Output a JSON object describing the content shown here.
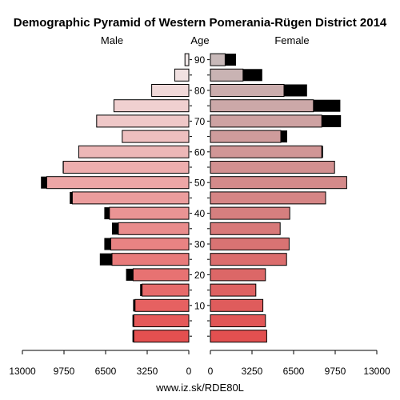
{
  "chart_data": {
    "type": "bar",
    "orientation": "horizontal-pyramid",
    "title": "Demographic Pyramid of Western Pomerania-Rügen District 2014",
    "left_header": "Male",
    "center_header": "Age",
    "right_header": "Female",
    "footer": "www.iz.sk/RDE80L",
    "age_ticks": [
      "90",
      "80",
      "70",
      "60",
      "50",
      "40",
      "30",
      "20",
      "10"
    ],
    "x_ticks_male": [
      "13000",
      "9750",
      "6500",
      "3250",
      "0"
    ],
    "x_ticks_female": [
      "0",
      "3250",
      "6500",
      "9750",
      "13000"
    ],
    "xlim": [
      0,
      13000
    ],
    "age_groups": [
      "0-4",
      "5-9",
      "10-14",
      "15-19",
      "20-24",
      "25-29",
      "30-34",
      "35-39",
      "40-44",
      "45-49",
      "50-54",
      "55-59",
      "60-64",
      "65-69",
      "70-74",
      "75-79",
      "80-84",
      "85-89",
      "90+"
    ],
    "series": [
      {
        "name": "Male",
        "values": [
          4300,
          4300,
          4200,
          3650,
          4350,
          6000,
          6100,
          5500,
          6200,
          9100,
          11100,
          9800,
          8600,
          5200,
          7200,
          5850,
          2900,
          1100,
          300
        ],
        "excess": [
          100,
          100,
          150,
          150,
          550,
          950,
          500,
          500,
          400,
          200,
          450,
          50,
          0,
          0,
          0,
          0,
          0,
          0,
          0
        ]
      },
      {
        "name": "Female",
        "values": [
          4400,
          4300,
          4100,
          3550,
          4300,
          5950,
          6150,
          5450,
          6200,
          9000,
          10650,
          9700,
          8700,
          5500,
          8700,
          8050,
          5750,
          2550,
          1150
        ],
        "excess": [
          0,
          0,
          0,
          0,
          0,
          0,
          0,
          0,
          0,
          0,
          0,
          0,
          100,
          500,
          1500,
          2100,
          1800,
          1500,
          850
        ]
      }
    ],
    "colors": {
      "excess": "#000000",
      "bar_stroke": "#000000",
      "axis": "#000000"
    }
  }
}
